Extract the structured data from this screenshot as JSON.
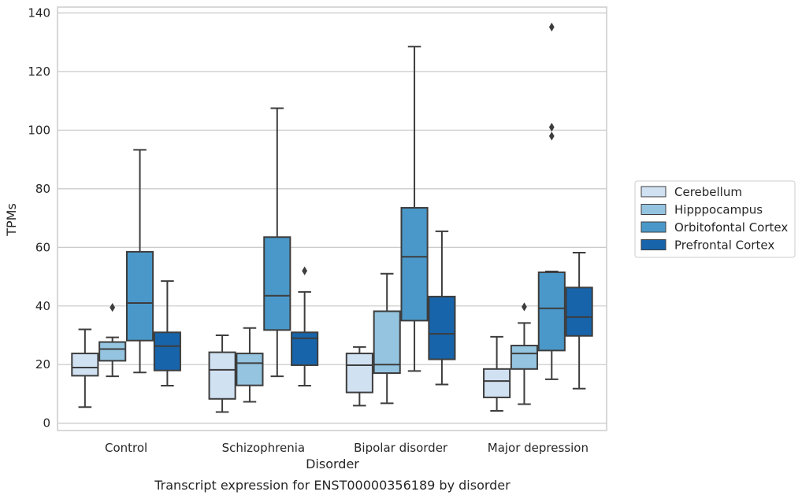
{
  "caption": "Transcript expression for ENST00000356189 by disorder",
  "chart_data": {
    "type": "box",
    "title": "",
    "xlabel": "Disorder",
    "ylabel": "TPMs",
    "ylim": [
      -2.5,
      142
    ],
    "yticks": [
      "0",
      "20",
      "40",
      "60",
      "80",
      "100",
      "120",
      "140"
    ],
    "ytick_values": [
      0,
      20,
      40,
      60,
      80,
      100,
      120,
      140
    ],
    "grid": "horizontal",
    "legend_position": "outside-right",
    "categories": [
      "Control",
      "Schizophrenia",
      "Bipolar disorder",
      "Major depression"
    ],
    "series": [
      {
        "name": "Cerebellum",
        "color": "#d0e1f2",
        "boxes": [
          {
            "whisker_low": 5.5,
            "q1": 16.2,
            "median": 19.0,
            "q3": 23.8,
            "whisker_high": 32,
            "outliers": []
          },
          {
            "whisker_low": 3.8,
            "q1": 8.3,
            "median": 18.2,
            "q3": 24.2,
            "whisker_high": 30,
            "outliers": []
          },
          {
            "whisker_low": 6.0,
            "q1": 10.5,
            "median": 19.8,
            "q3": 23.8,
            "whisker_high": 26,
            "outliers": []
          },
          {
            "whisker_low": 4.2,
            "q1": 8.8,
            "median": 14.4,
            "q3": 18.5,
            "whisker_high": 29.5,
            "outliers": []
          }
        ]
      },
      {
        "name": "Hipppocampus",
        "color": "#94c4df",
        "boxes": [
          {
            "whisker_low": 16.0,
            "q1": 21.3,
            "median": 25.3,
            "q3": 27.7,
            "whisker_high": 29.3,
            "outliers": [
              39.5
            ]
          },
          {
            "whisker_low": 7.3,
            "q1": 12.9,
            "median": 20.5,
            "q3": 23.8,
            "whisker_high": 32.5,
            "outliers": []
          },
          {
            "whisker_low": 6.8,
            "q1": 17.1,
            "median": 20.0,
            "q3": 38.2,
            "whisker_high": 51,
            "outliers": []
          },
          {
            "whisker_low": 6.5,
            "q1": 18.5,
            "median": 23.8,
            "q3": 26.5,
            "whisker_high": 34.2,
            "outliers": [
              39.7
            ]
          }
        ]
      },
      {
        "name": "Orbitofontal Cortex",
        "color": "#4a98c9",
        "boxes": [
          {
            "whisker_low": 17.3,
            "q1": 28.2,
            "median": 41.0,
            "q3": 58.5,
            "whisker_high": 93.3,
            "outliers": []
          },
          {
            "whisker_low": 16.0,
            "q1": 31.8,
            "median": 43.5,
            "q3": 63.5,
            "whisker_high": 107.5,
            "outliers": []
          },
          {
            "whisker_low": 17.8,
            "q1": 35.0,
            "median": 56.8,
            "q3": 73.5,
            "whisker_high": 128.5,
            "outliers": []
          },
          {
            "whisker_low": 15.0,
            "q1": 24.8,
            "median": 39.2,
            "q3": 51.5,
            "whisker_high": 51.8,
            "outliers": [
              98,
              101,
              135.2
            ]
          }
        ]
      },
      {
        "name": "Prefrontal Cortex",
        "color": "#1764ab",
        "boxes": [
          {
            "whisker_low": 12.8,
            "q1": 18.0,
            "median": 26.3,
            "q3": 31.0,
            "whisker_high": 48.5,
            "outliers": []
          },
          {
            "whisker_low": 12.8,
            "q1": 19.8,
            "median": 29.0,
            "q3": 31.0,
            "whisker_high": 44.8,
            "outliers": [
              52
            ]
          },
          {
            "whisker_low": 13.2,
            "q1": 21.8,
            "median": 30.5,
            "q3": 43.2,
            "whisker_high": 65.5,
            "outliers": []
          },
          {
            "whisker_low": 11.8,
            "q1": 29.8,
            "median": 36.2,
            "q3": 46.3,
            "whisker_high": 58.2,
            "outliers": []
          }
        ]
      }
    ]
  }
}
